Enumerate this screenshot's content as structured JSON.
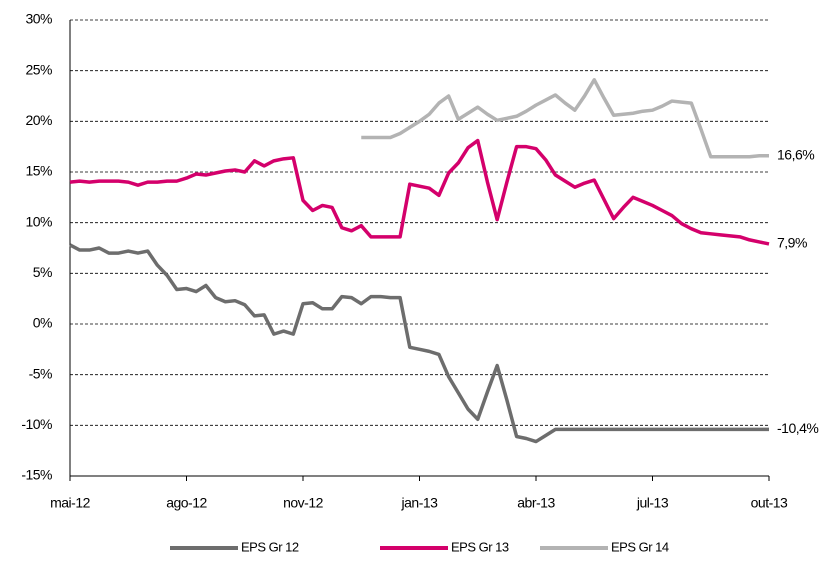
{
  "chart_data": {
    "type": "line",
    "categories": [
      "mai-12",
      null,
      null,
      null,
      null,
      null,
      null,
      null,
      null,
      null,
      null,
      null,
      "ago-12",
      null,
      null,
      null,
      null,
      null,
      null,
      null,
      null,
      null,
      null,
      null,
      "nov-12",
      null,
      null,
      null,
      null,
      null,
      null,
      null,
      null,
      null,
      null,
      null,
      "jan-13",
      null,
      null,
      null,
      null,
      null,
      null,
      null,
      null,
      null,
      null,
      null,
      "abr-13",
      null,
      null,
      null,
      null,
      null,
      null,
      null,
      null,
      null,
      null,
      null,
      "jul-13",
      null,
      null,
      null,
      null,
      null,
      null,
      null,
      null,
      null,
      null,
      null,
      "out-13"
    ],
    "series": [
      {
        "name": "EPS Gr 12",
        "color": "#6d6d6d",
        "end_label": "-10,4%",
        "values": [
          7.8,
          7.3,
          7.3,
          7.5,
          7.0,
          7.0,
          7.2,
          7.0,
          7.2,
          5.8,
          4.8,
          3.4,
          3.5,
          3.2,
          3.8,
          2.6,
          2.2,
          2.3,
          1.9,
          0.8,
          0.9,
          -1.0,
          -0.7,
          -1.0,
          2.0,
          2.1,
          1.5,
          1.5,
          2.7,
          2.6,
          2.0,
          2.7,
          2.7,
          2.6,
          2.6,
          -2.3,
          -2.5,
          -2.7,
          -3.0,
          -5.2,
          -6.8,
          -8.4,
          -9.4,
          -6.7,
          -4.1,
          -7.5,
          -11.1,
          -11.3,
          -11.6,
          -11.0,
          -10.4,
          -10.4,
          -10.4,
          -10.4,
          -10.4,
          -10.4,
          -10.4,
          -10.4,
          -10.4,
          -10.4,
          -10.4,
          -10.4,
          -10.4,
          -10.4,
          -10.4,
          -10.4,
          -10.4,
          -10.4,
          -10.4,
          -10.4,
          -10.4,
          -10.4,
          -10.4
        ]
      },
      {
        "name": "EPS Gr 13",
        "color": "#d4006b",
        "end_label": "7,9%",
        "values": [
          14.0,
          14.1,
          14.0,
          14.1,
          14.1,
          14.1,
          14.0,
          13.7,
          14.0,
          14.0,
          14.1,
          14.1,
          14.4,
          14.8,
          14.7,
          14.9,
          15.1,
          15.2,
          15.0,
          16.1,
          15.6,
          16.1,
          16.3,
          16.4,
          12.2,
          11.2,
          11.7,
          11.5,
          9.5,
          9.2,
          9.7,
          8.6,
          8.6,
          8.6,
          8.6,
          13.8,
          13.6,
          13.4,
          12.7,
          14.9,
          15.9,
          17.4,
          18.1,
          14.0,
          10.3,
          14.0,
          17.5,
          17.5,
          17.3,
          16.2,
          14.7,
          14.1,
          13.5,
          13.9,
          14.2,
          12.3,
          10.4,
          11.5,
          12.5,
          12.1,
          11.7,
          11.2,
          10.7,
          9.9,
          9.4,
          9.0,
          8.9,
          8.8,
          8.7,
          8.6,
          8.3,
          8.1,
          7.9
        ]
      },
      {
        "name": "EPS Gr 14",
        "color": "#b3b3b3",
        "end_label": "16,6%",
        "values": [
          null,
          null,
          null,
          null,
          null,
          null,
          null,
          null,
          null,
          null,
          null,
          null,
          null,
          null,
          null,
          null,
          null,
          null,
          null,
          null,
          null,
          null,
          null,
          null,
          null,
          null,
          null,
          null,
          null,
          null,
          18.4,
          18.4,
          18.4,
          18.4,
          18.8,
          19.4,
          20.0,
          20.7,
          21.8,
          22.5,
          20.2,
          20.8,
          21.4,
          20.7,
          20.1,
          20.3,
          20.5,
          21.0,
          21.6,
          22.1,
          22.6,
          21.8,
          21.1,
          22.5,
          24.1,
          22.3,
          20.6,
          20.7,
          20.8,
          21.0,
          21.1,
          21.5,
          22.0,
          21.9,
          21.8,
          19.2,
          16.5,
          16.5,
          16.5,
          16.5,
          16.5,
          16.6,
          16.6
        ]
      }
    ],
    "ylim": [
      -15,
      30
    ],
    "yticks": [
      {
        "value": -15,
        "label": "-15%"
      },
      {
        "value": -10,
        "label": "-10%"
      },
      {
        "value": -5,
        "label": "-5%"
      },
      {
        "value": 0,
        "label": "0%"
      },
      {
        "value": 5,
        "label": "5%"
      },
      {
        "value": 10,
        "label": "10%"
      },
      {
        "value": 15,
        "label": "15%"
      },
      {
        "value": 20,
        "label": "20%"
      },
      {
        "value": 25,
        "label": "25%"
      },
      {
        "value": 30,
        "label": "30%"
      }
    ],
    "grid": true,
    "legend": "bottom"
  }
}
